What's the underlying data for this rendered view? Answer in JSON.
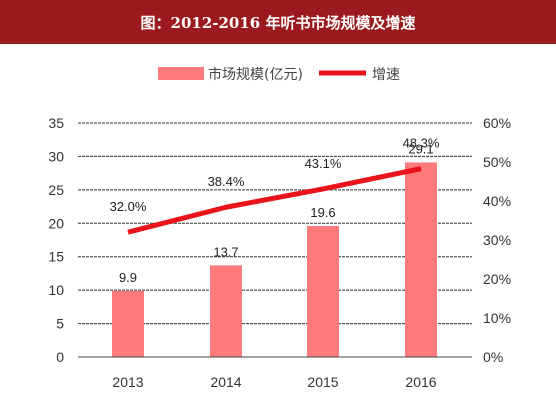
{
  "title": "图：2012-2016 年听书市场规模及增速",
  "chart_data": {
    "type": "bar",
    "categories": [
      "2013",
      "2014",
      "2015",
      "2016"
    ],
    "series": [
      {
        "name": "市场规模(亿元)",
        "type": "bar",
        "axis": "left",
        "values": [
          9.9,
          13.7,
          19.6,
          29.1
        ],
        "labels": [
          "9.9",
          "13.7",
          "19.6",
          "29.1"
        ],
        "color": "#ff7b7b"
      },
      {
        "name": "增速",
        "type": "line",
        "axis": "right",
        "values": [
          32.0,
          38.4,
          43.1,
          48.3
        ],
        "labels": [
          "32.0%",
          "38.4%",
          "43.1%",
          "48.3%"
        ],
        "color": "#e8131b"
      }
    ],
    "y_left": {
      "min": 0,
      "max": 35,
      "ticks": [
        "0",
        "5",
        "10",
        "15",
        "20",
        "25",
        "30",
        "35"
      ]
    },
    "y_right": {
      "min": 0,
      "max": 60,
      "ticks": [
        "0%",
        "10%",
        "20%",
        "30%",
        "40%",
        "50%",
        "60%"
      ]
    },
    "grid": "dashed-horizontal",
    "legend": "top-center",
    "title_color": "#9b1a1d"
  }
}
